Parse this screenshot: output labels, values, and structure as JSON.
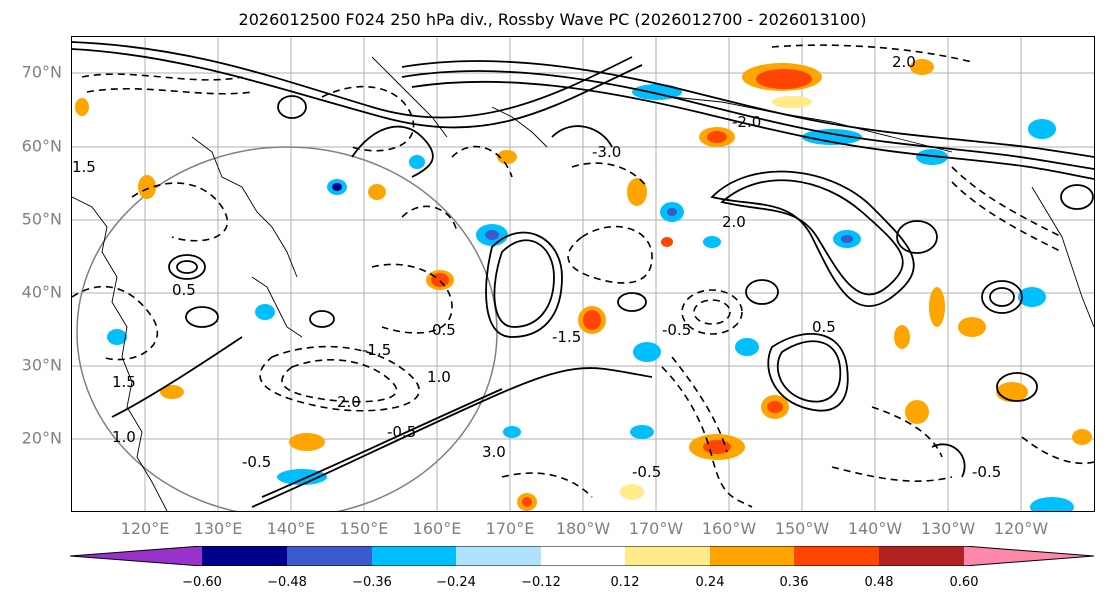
{
  "title": "2026012500 F024 250 hPa div., Rossby Wave PC (2026012700 - 2026013100)",
  "map": {
    "projection": "PlateCarree",
    "lat_labels": [
      "70°N",
      "60°N",
      "50°N",
      "40°N",
      "30°N",
      "20°N"
    ],
    "lon_labels": [
      "120°E",
      "130°E",
      "140°E",
      "150°E",
      "160°E",
      "170°E",
      "180°W",
      "170°W",
      "160°W",
      "150°W",
      "140°W",
      "130°W",
      "120°W"
    ],
    "contour_labels": [
      "-0.5",
      "0.5",
      "1.0",
      "1.5",
      "-1.5",
      "2.0",
      "-2.0",
      "3.0",
      "-3.0"
    ],
    "gridline_color": "#b0b0b0",
    "coastline_color": "#000000"
  },
  "colorbar": {
    "colors": [
      "#9932CC",
      "#00008B",
      "#3A5BCB",
      "#00BFFF",
      "#B0E2FF",
      "#FFFFFF",
      "#FFEB8A",
      "#FFA500",
      "#FF4500",
      "#B22222",
      "#FF88AA"
    ],
    "tick_labels": [
      "−0.60",
      "−0.48",
      "−0.36",
      "−0.24",
      "−0.12",
      "0.12",
      "0.24",
      "0.36",
      "0.48",
      "0.60"
    ]
  }
}
